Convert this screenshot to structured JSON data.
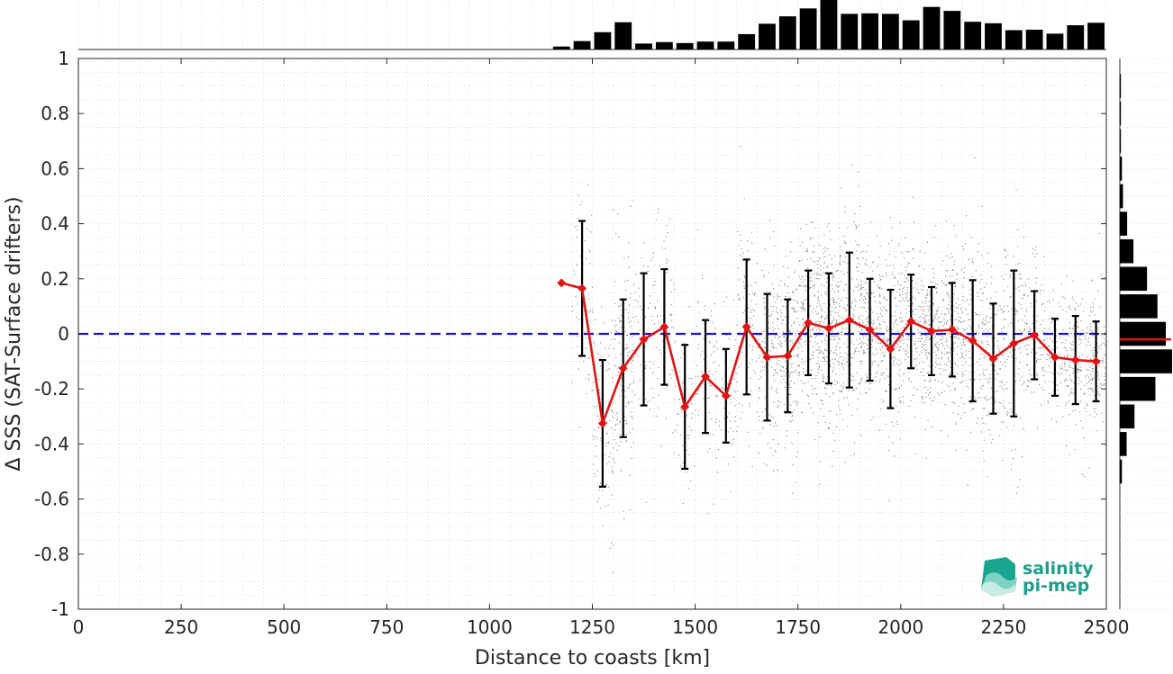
{
  "chart_data": {
    "type": "scatter",
    "xlabel": "Distance to coasts [km]",
    "ylabel": "Δ SSS (SAT-Surface drifters)",
    "xlim": [
      0,
      2500
    ],
    "ylim": [
      -1,
      1
    ],
    "x_ticks": [
      "0",
      "250",
      "500",
      "750",
      "1000",
      "1250",
      "1500",
      "1750",
      "2000",
      "2250",
      "2500"
    ],
    "y_ticks": [
      "-1",
      "-0.8",
      "-0.6",
      "-0.4",
      "-0.2",
      "0",
      "0.2",
      "0.4",
      "0.6",
      "0.8",
      "1"
    ],
    "grid": true,
    "reference_line": {
      "y": 0,
      "style": "dashed",
      "color": "#1414d2"
    },
    "binned_mean": {
      "color": "#e01414",
      "x": [
        1175,
        1225,
        1275,
        1325,
        1375,
        1425,
        1475,
        1525,
        1575,
        1625,
        1675,
        1725,
        1775,
        1825,
        1875,
        1925,
        1975,
        2025,
        2075,
        2125,
        2175,
        2225,
        2275,
        2325,
        2375,
        2425,
        2475
      ],
      "mean": [
        0.185,
        0.165,
        -0.325,
        -0.125,
        -0.02,
        0.025,
        -0.265,
        -0.155,
        -0.225,
        0.025,
        -0.085,
        -0.08,
        0.04,
        0.02,
        0.05,
        0.015,
        -0.055,
        0.045,
        0.01,
        0.015,
        -0.025,
        -0.09,
        -0.035,
        -0.005,
        -0.085,
        -0.095,
        -0.1
      ],
      "std": [
        0,
        0.245,
        0.23,
        0.25,
        0.24,
        0.21,
        0.225,
        0.205,
        0.17,
        0.245,
        0.23,
        0.205,
        0.19,
        0.2,
        0.245,
        0.185,
        0.215,
        0.17,
        0.16,
        0.17,
        0.22,
        0.2,
        0.265,
        0.16,
        0.14,
        0.16,
        0.145
      ]
    },
    "scatter_color": "#808080",
    "top_histogram": {
      "bin_centers": [
        1175,
        1225,
        1275,
        1325,
        1375,
        1425,
        1475,
        1525,
        1575,
        1625,
        1675,
        1725,
        1775,
        1825,
        1875,
        1925,
        1975,
        2025,
        2075,
        2125,
        2175,
        2225,
        2275,
        2325,
        2375,
        2425,
        2475
      ],
      "counts": [
        0.06,
        0.17,
        0.35,
        0.55,
        0.12,
        0.15,
        0.13,
        0.16,
        0.16,
        0.31,
        0.52,
        0.67,
        0.83,
        1.0,
        0.72,
        0.73,
        0.72,
        0.59,
        0.86,
        0.78,
        0.56,
        0.53,
        0.39,
        0.4,
        0.32,
        0.49,
        0.54
      ]
    },
    "right_histogram": {
      "bin_centers": [
        0.9,
        0.8,
        0.7,
        0.6,
        0.5,
        0.4,
        0.3,
        0.2,
        0.1,
        0.0,
        -0.1,
        -0.2,
        -0.3,
        -0.4,
        -0.5
      ],
      "counts": [
        0.02,
        0.02,
        0.02,
        0.04,
        0.06,
        0.14,
        0.26,
        0.52,
        0.72,
        0.88,
        1.0,
        0.68,
        0.28,
        0.13,
        0.04
      ],
      "mean_marker": -0.02
    },
    "logo_text": [
      "salinity",
      "pi-mep"
    ]
  }
}
